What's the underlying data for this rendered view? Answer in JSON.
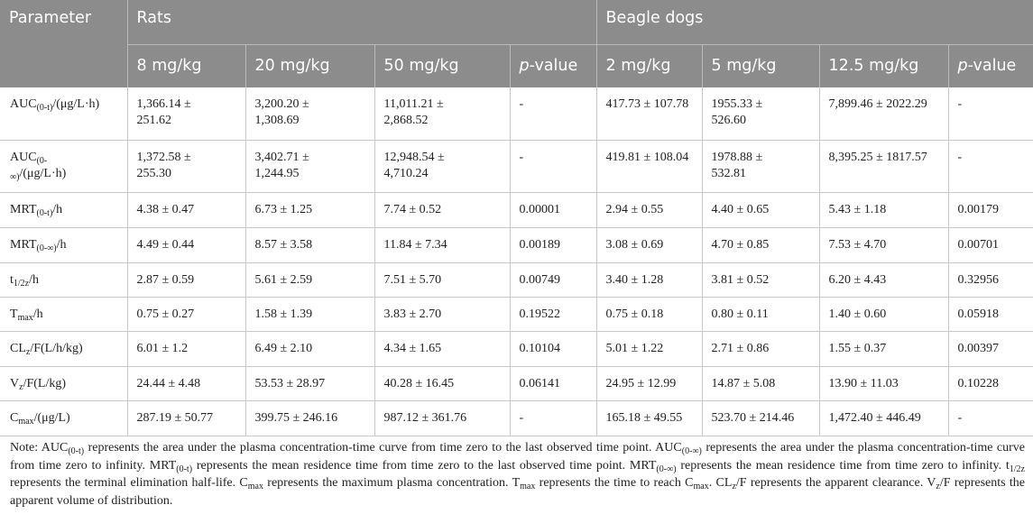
{
  "table": {
    "header": {
      "parameter": "Parameter",
      "rats": "Rats",
      "dogs": "Beagle dogs",
      "rat_doses": [
        "8 mg/kg",
        "20 mg/kg",
        "50 mg/kg"
      ],
      "dog_doses": [
        "2 mg/kg",
        "5 mg/kg",
        "12.5 mg/kg"
      ],
      "p_italic": "p",
      "p_rest": "-value"
    },
    "rows": [
      {
        "p1": "AUC",
        "s1": "(0-t)",
        "p2": "/(μg/L·h)",
        "cells": [
          "1,366.14 ±",
          "251.62",
          "3,200.20 ±",
          "1,308.69",
          "11,011.21 ±",
          "2,868.52",
          "-",
          "417.73 ± 107.78",
          "1955.33 ±",
          "526.60",
          "7,899.46 ± 2022.29",
          "-"
        ]
      },
      {
        "p1": "AUC",
        "s1": "(0-",
        "s1b": "∞)",
        "p2": "/(μg/L·h)",
        "cells": [
          "1,372.58 ±",
          "255.30",
          "3,402.71 ±",
          "1,244.95",
          "12,948.54 ±",
          "4,710.24",
          "-",
          "419.81 ± 108.04",
          "1978.88 ±",
          "532.81",
          "8,395.25 ± 1817.57",
          "-"
        ]
      },
      {
        "p1": "MRT",
        "s1": "(0-t)",
        "p2": "/h",
        "cells": [
          "4.38 ± 0.47",
          "6.73 ± 1.25",
          "7.74 ± 0.52",
          "0.00001",
          "2.94 ± 0.55",
          "4.40 ± 0.65",
          "5.43 ± 1.18",
          "0.00179"
        ]
      },
      {
        "p1": "MRT",
        "s1": "(0-∞)",
        "p2": "/h",
        "cells": [
          "4.49 ± 0.44",
          "8.57 ± 3.58",
          "11.84 ± 7.34",
          "0.00189",
          "3.08 ± 0.69",
          "4.70 ± 0.85",
          "7.53 ± 4.70",
          "0.00701"
        ]
      },
      {
        "p1": "t",
        "s1": "1/2z",
        "p2": "/h",
        "cells": [
          "2.87 ± 0.59",
          "5.61 ± 2.59",
          "7.51 ± 5.70",
          "0.00749",
          "3.40 ± 1.28",
          "3.81 ± 0.52",
          "6.20 ± 4.43",
          "0.32956"
        ]
      },
      {
        "p1": "T",
        "s1": "max",
        "p2": "/h",
        "cells": [
          "0.75 ± 0.27",
          "1.58 ± 1.39",
          "3.83 ± 2.70",
          "0.19522",
          "0.75 ± 0.18",
          "0.80 ± 0.11",
          "1.40 ± 0.60",
          "0.05918"
        ]
      },
      {
        "p1": "CL",
        "s1": "z",
        "p2": "/F(L/h/kg)",
        "cells": [
          "6.01 ± 1.2",
          "6.49 ± 2.10",
          "4.34 ± 1.65",
          "0.10104",
          "5.01 ± 1.22",
          "2.71 ± 0.86",
          "1.55 ± 0.37",
          "0.00397"
        ]
      },
      {
        "p1": "V",
        "s1": "z",
        "p2": "/F(L/kg)",
        "cells": [
          "24.44 ± 4.48",
          "53.53 ± 28.97",
          "40.28 ± 16.45",
          "0.06141",
          "24.95 ± 12.99",
          "14.87 ± 5.08",
          "13.90 ± 11.03",
          "0.10228"
        ]
      },
      {
        "p1": "C",
        "s1": "max",
        "p2": "/(μg/L)",
        "cells": [
          "287.19 ± 50.77",
          "399.75 ± 246.16",
          "987.12 ± 361.76",
          "-",
          "165.18 ± 49.55",
          "523.70 ± 214.46",
          "1,472.40 ± 446.49",
          "-"
        ]
      }
    ]
  },
  "note": {
    "t01": "Note: AUC",
    "s01": "(0-t)",
    "t02": " represents the area under the plasma concentration-time curve from time zero to the last observed time point. AUC",
    "s02": "(0-∞)",
    "t03": " represents the area under the plasma concentration-time curve from time zero to infinity. MRT",
    "s03": "(0-t)",
    "t04": " represents the mean residence time from time zero to the last observed time point. MRT",
    "s04": "(0-∞)",
    "t05": " represents the mean residence time from time zero to infinity. t",
    "s05": "1/2z",
    "t06": " represents the terminal elimination half-life. C",
    "s06": "max",
    "t07": " represents the maximum plasma concentration. T",
    "s07": "max",
    "t08": " represents the time to reach C",
    "s08": "max",
    "t09": ". CL",
    "s09": "z",
    "t10": "/F represents the apparent clearance. V",
    "s10": "z",
    "t11": "/F represents the apparent volume of distribution."
  }
}
